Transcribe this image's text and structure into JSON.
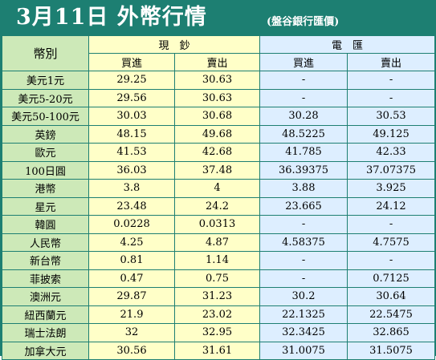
{
  "title": {
    "main": "3月11日 外幣行情",
    "sub": "(盤谷銀行匯價)"
  },
  "headers": {
    "currency": "幣別",
    "cash": "現　鈔",
    "wire": "電　匯",
    "buy": "買進",
    "sell": "賣出"
  },
  "rows": [
    {
      "name": "美元1元",
      "cash_buy": "29.25",
      "cash_sell": "30.63",
      "wire_buy": "-",
      "wire_sell": "-"
    },
    {
      "name": "美元5-20元",
      "cash_buy": "29.56",
      "cash_sell": "30.63",
      "wire_buy": "-",
      "wire_sell": "-"
    },
    {
      "name": "美元50-100元",
      "cash_buy": "30.03",
      "cash_sell": "30.68",
      "wire_buy": "30.28",
      "wire_sell": "30.53"
    },
    {
      "name": "英鎊",
      "cash_buy": "48.15",
      "cash_sell": "49.68",
      "wire_buy": "48.5225",
      "wire_sell": "49.125"
    },
    {
      "name": "歐元",
      "cash_buy": "41.53",
      "cash_sell": "42.68",
      "wire_buy": "41.785",
      "wire_sell": "42.33"
    },
    {
      "name": "100日圓",
      "cash_buy": "36.03",
      "cash_sell": "37.48",
      "wire_buy": "36.39375",
      "wire_sell": "37.07375"
    },
    {
      "name": "港幣",
      "cash_buy": "3.8",
      "cash_sell": "4",
      "wire_buy": "3.88",
      "wire_sell": "3.925"
    },
    {
      "name": "星元",
      "cash_buy": "23.48",
      "cash_sell": "24.2",
      "wire_buy": "23.665",
      "wire_sell": "24.12"
    },
    {
      "name": "韓圓",
      "cash_buy": "0.0228",
      "cash_sell": "0.0313",
      "wire_buy": "-",
      "wire_sell": "-"
    },
    {
      "name": "人民幣",
      "cash_buy": "4.25",
      "cash_sell": "4.87",
      "wire_buy": "4.58375",
      "wire_sell": "4.7575"
    },
    {
      "name": "新台幣",
      "cash_buy": "0.81",
      "cash_sell": "1.14",
      "wire_buy": "-",
      "wire_sell": "-"
    },
    {
      "name": "菲披索",
      "cash_buy": "0.47",
      "cash_sell": "0.75",
      "wire_buy": "-",
      "wire_sell": "0.7125"
    },
    {
      "name": "澳洲元",
      "cash_buy": "29.87",
      "cash_sell": "31.23",
      "wire_buy": "30.2",
      "wire_sell": "30.64"
    },
    {
      "name": "紐西蘭元",
      "cash_buy": "21.9",
      "cash_sell": "23.02",
      "wire_buy": "22.1325",
      "wire_sell": "22.5475"
    },
    {
      "name": "瑞士法朗",
      "cash_buy": "32",
      "cash_sell": "32.95",
      "wire_buy": "32.3425",
      "wire_sell": "32.865"
    },
    {
      "name": "加拿大元",
      "cash_buy": "30.56",
      "cash_sell": "31.61",
      "wire_buy": "31.0075",
      "wire_sell": "31.5075"
    }
  ],
  "colors": {
    "frame": "#1d7f72",
    "name_column": "#cde9b8",
    "cash_columns": "#ffffc8",
    "wire_columns": "#ddeeff"
  }
}
